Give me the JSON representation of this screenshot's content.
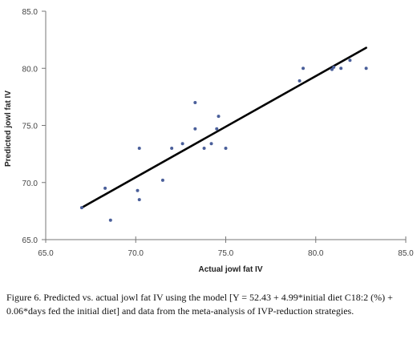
{
  "chart_data": {
    "type": "scatter",
    "xlabel": "Actual jowl fat IV",
    "ylabel": "Predicted jowl fat IV",
    "xlim": [
      65.0,
      85.0
    ],
    "ylim": [
      65.0,
      85.0
    ],
    "x_ticks": [
      "65.0",
      "70.0",
      "75.0",
      "80.0",
      "85.0"
    ],
    "y_ticks": [
      "65.0",
      "70.0",
      "75.0",
      "80.0",
      "85.0"
    ],
    "points": [
      {
        "x": 67.0,
        "y": 67.8
      },
      {
        "x": 68.3,
        "y": 69.5
      },
      {
        "x": 68.6,
        "y": 66.7
      },
      {
        "x": 70.1,
        "y": 69.3
      },
      {
        "x": 70.2,
        "y": 68.5
      },
      {
        "x": 70.2,
        "y": 73.0
      },
      {
        "x": 71.5,
        "y": 70.2
      },
      {
        "x": 72.0,
        "y": 73.0
      },
      {
        "x": 72.6,
        "y": 73.4
      },
      {
        "x": 73.3,
        "y": 77.0
      },
      {
        "x": 73.3,
        "y": 74.7
      },
      {
        "x": 73.8,
        "y": 73.0
      },
      {
        "x": 74.2,
        "y": 73.4
      },
      {
        "x": 74.5,
        "y": 74.7
      },
      {
        "x": 74.6,
        "y": 75.8
      },
      {
        "x": 75.0,
        "y": 73.0
      },
      {
        "x": 79.1,
        "y": 78.9
      },
      {
        "x": 79.3,
        "y": 80.0
      },
      {
        "x": 80.9,
        "y": 79.9
      },
      {
        "x": 81.0,
        "y": 80.1
      },
      {
        "x": 81.4,
        "y": 80.0
      },
      {
        "x": 81.9,
        "y": 80.7
      },
      {
        "x": 82.8,
        "y": 80.0
      }
    ],
    "fit_line": {
      "x": [
        67.0,
        82.8
      ],
      "y": [
        67.8,
        81.8
      ]
    },
    "point_color": "#4a5f9a",
    "line_color": "#000000",
    "grid": false
  },
  "caption": {
    "text": "Figure 6. Predicted vs. actual jowl fat IV using the model [Y = 52.43 + 4.99*initial diet C18:2 (%) + 0.06*days fed the initial diet] and data from the meta-analysis of IVP-reduction strategies."
  }
}
